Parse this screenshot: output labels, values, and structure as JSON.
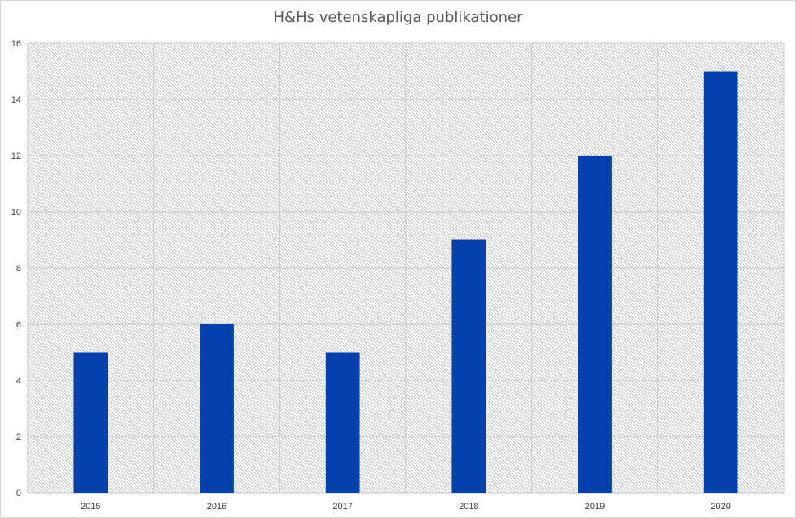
{
  "chart_data": {
    "type": "bar",
    "title": "H&Hs vetenskapliga publikationer",
    "xlabel": "",
    "ylabel": "",
    "categories": [
      "2015",
      "2016",
      "2017",
      "2018",
      "2019",
      "2020"
    ],
    "values": [
      5,
      6,
      5,
      9,
      12,
      15
    ],
    "ylim": [
      0,
      16
    ],
    "yticks": [
      0,
      2,
      4,
      6,
      8,
      10,
      12,
      14,
      16
    ],
    "grid": true,
    "legend": "none",
    "colors": {
      "bar": "#0441ae",
      "grid": "#c8c8c8",
      "hatch": "#bfbfbf"
    }
  }
}
